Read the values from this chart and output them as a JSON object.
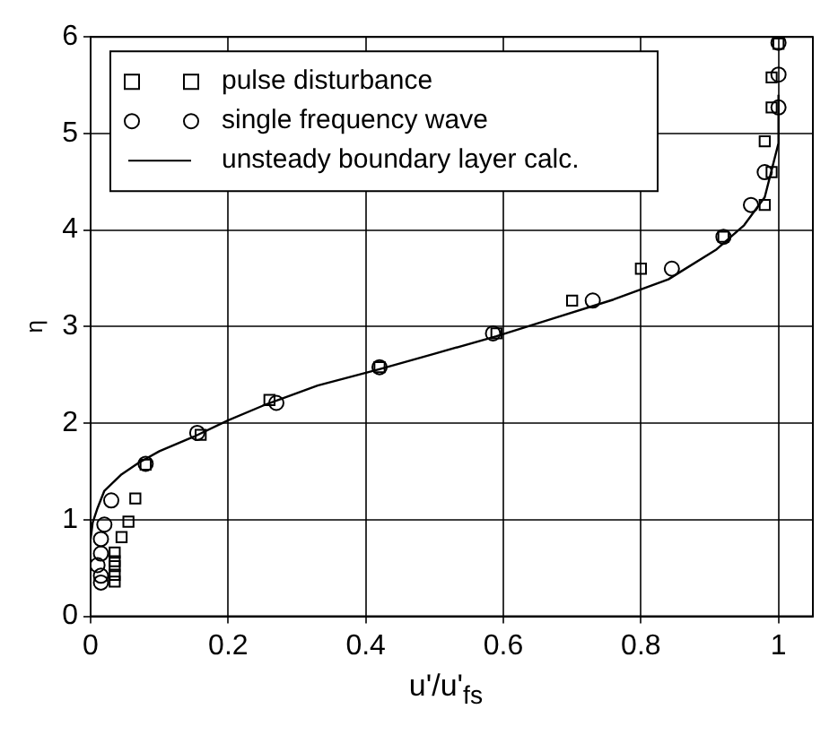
{
  "chart_data": {
    "type": "scatter",
    "xlabel": "u'/u'$_{fs}$",
    "ylabel": "η",
    "xlim": [
      0,
      1.05
    ],
    "ylim": [
      0,
      6
    ],
    "xticks": [
      0,
      0.2,
      0.4,
      0.6,
      0.8,
      1
    ],
    "yticks": [
      0,
      1,
      2,
      3,
      4,
      5,
      6
    ],
    "grid": true,
    "legend": "top left",
    "series": [
      {
        "name": "pulse disturbance",
        "color": "#000000",
        "marker": "square",
        "x": [
          1.0,
          0.99,
          0.99,
          0.98,
          0.99,
          0.98,
          0.92,
          0.8,
          0.7,
          0.59,
          0.42,
          0.26,
          0.16,
          0.08,
          0.065,
          0.055,
          0.045,
          0.035,
          0.035,
          0.035,
          0.035,
          0.035
        ],
        "values": [
          5.93,
          5.58,
          5.27,
          4.92,
          4.6,
          4.26,
          3.93,
          3.6,
          3.27,
          2.93,
          2.58,
          2.24,
          1.88,
          1.57,
          1.22,
          0.98,
          0.82,
          0.66,
          0.57,
          0.52,
          0.43,
          0.36
        ]
      },
      {
        "name": "single frequency wave",
        "color": "#000000",
        "marker": "circle",
        "x": [
          1.0,
          1.0,
          1.0,
          0.98,
          0.96,
          0.92,
          0.845,
          0.73,
          0.585,
          0.42,
          0.27,
          0.155,
          0.08,
          0.03,
          0.02,
          0.015,
          0.015,
          0.01,
          0.015,
          0.015
        ],
        "values": [
          5.94,
          5.61,
          5.27,
          4.6,
          4.26,
          3.93,
          3.6,
          3.27,
          2.93,
          2.58,
          2.21,
          1.9,
          1.58,
          1.2,
          0.95,
          0.8,
          0.65,
          0.53,
          0.42,
          0.35
        ]
      },
      {
        "name": "unsteady boundary layer calc.",
        "type": "line",
        "color": "#000000",
        "marker": "none",
        "line_style": "solid",
        "x": [
          0,
          0.003,
          0.01,
          0.02,
          0.045,
          0.07,
          0.1,
          0.15,
          0.2,
          0.25,
          0.33,
          0.42,
          0.5,
          0.59,
          0.67,
          0.76,
          0.84,
          0.91,
          0.95,
          0.98,
          0.99,
          1.0,
          1.0
        ],
        "values": [
          0.8,
          0.97,
          1.12,
          1.3,
          1.47,
          1.59,
          1.71,
          1.86,
          2.03,
          2.18,
          2.39,
          2.56,
          2.72,
          2.9,
          3.08,
          3.28,
          3.49,
          3.8,
          4.05,
          4.34,
          4.62,
          4.9,
          5.4
        ]
      }
    ]
  }
}
